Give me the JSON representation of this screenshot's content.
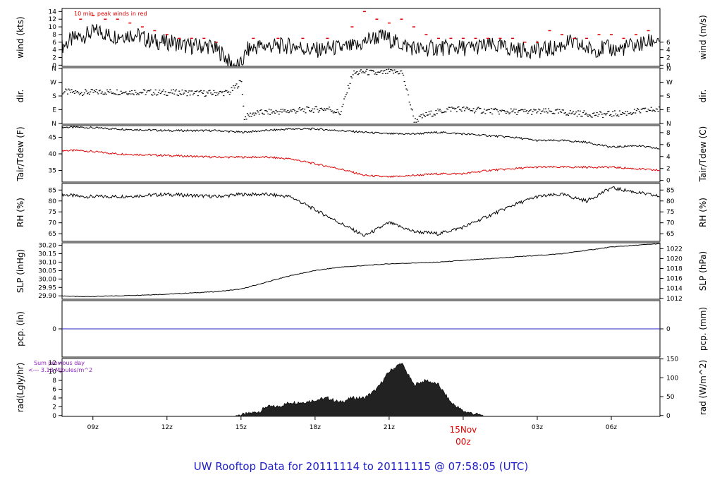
{
  "title": "UW Rooftop Data for 20111114  to  20111115 @ 07:58:05  (UTC)",
  "colors": {
    "main": "#000000",
    "peak": "#e00000",
    "dew": "#e00000",
    "precip": "#2020c8",
    "title": "#2020c8",
    "note_rad": "#9020c0"
  },
  "x_axis": {
    "range_hours": [
      7.75,
      31.97
    ],
    "ticks": [
      {
        "hour": 9,
        "label": "09z"
      },
      {
        "hour": 12,
        "label": "12z"
      },
      {
        "hour": 15,
        "label": "15z"
      },
      {
        "hour": 18,
        "label": "18z"
      },
      {
        "hour": 21,
        "label": "21z"
      },
      {
        "hour": 24,
        "label": "00z"
      },
      {
        "hour": 27,
        "label": "03z"
      },
      {
        "hour": 30,
        "label": "06z"
      }
    ],
    "day_label": {
      "hour": 24,
      "date": "15Nov",
      "time": "00z"
    }
  },
  "chart_data": [
    {
      "type": "line",
      "panel": "wind",
      "left_label": "wind (kts)",
      "right_label": "wind (m/s)",
      "left_ticks": [
        0,
        2,
        4,
        6,
        8,
        10,
        12,
        14
      ],
      "left_ticks_text": [
        "0",
        "2",
        "4",
        "6",
        "8",
        "10",
        "12",
        "14"
      ],
      "right_ticks": [
        0,
        2,
        4,
        6
      ],
      "right_ticks_text": [
        "0",
        "2",
        "4",
        "6"
      ],
      "ylim": [
        -0.3,
        14.8
      ],
      "annotation": "10 min. peak winds in red",
      "x": [
        7.75,
        8.25,
        8.75,
        9.25,
        9.75,
        10.25,
        10.75,
        11.25,
        11.75,
        12.25,
        12.75,
        13.25,
        13.75,
        14.25,
        14.5,
        14.6,
        15.0,
        15.25,
        15.75,
        16.25,
        16.75,
        17.25,
        17.75,
        18.25,
        18.75,
        19.25,
        19.75,
        20.25,
        20.75,
        21.25,
        21.75,
        22.25,
        22.75,
        23.25,
        23.75,
        24.25,
        24.75,
        25.25,
        25.75,
        26.25,
        26.75,
        27.25,
        27.75,
        28.25,
        28.75,
        29.25,
        29.75,
        30.25,
        30.75,
        31.25,
        31.75,
        31.97
      ],
      "y": [
        5,
        7,
        8,
        9,
        7.5,
        8,
        8,
        6.5,
        6,
        6,
        5,
        5,
        5,
        3,
        1,
        0,
        0,
        4,
        5,
        5,
        5,
        5,
        4,
        4,
        4.5,
        4.5,
        5,
        7,
        7.5,
        6,
        5,
        4,
        4.5,
        4.5,
        4.5,
        4.5,
        5,
        5,
        4.5,
        4,
        4,
        4,
        4.5,
        6,
        5,
        4,
        4.5,
        4,
        5,
        5.5,
        6.5,
        7
      ],
      "peak_x": [
        8.5,
        9.0,
        9.5,
        10.0,
        10.5,
        11.0,
        11.5,
        12.0,
        12.5,
        13.0,
        13.5,
        14.0,
        15.5,
        16.5,
        17.5,
        18.5,
        19.5,
        20.0,
        20.5,
        21.0,
        21.5,
        22.0,
        22.5,
        23.0,
        23.5,
        24.0,
        24.5,
        25.0,
        25.5,
        26.0,
        26.5,
        27.0,
        27.5,
        28.0,
        28.5,
        29.0,
        29.5,
        30.0,
        30.5,
        31.0,
        31.5
      ],
      "peak_y": [
        12,
        13,
        12,
        12,
        11,
        10,
        9,
        8,
        7,
        7,
        7,
        6,
        7,
        7,
        7,
        7,
        10,
        14,
        12,
        11,
        12,
        10,
        8,
        7,
        7,
        7,
        7,
        7,
        7,
        7,
        6,
        6,
        9,
        8,
        7,
        7,
        8,
        8,
        7,
        8,
        9
      ]
    },
    {
      "type": "scatter",
      "panel": "dir",
      "left_label": "dir.",
      "right_label": "dir.",
      "left_ticks": [
        0,
        90,
        180,
        270,
        360
      ],
      "left_ticks_text": [
        "N",
        "E",
        "S",
        "W",
        "N"
      ],
      "right_ticks": [
        0,
        90,
        180,
        270,
        360
      ],
      "right_ticks_text": [
        "N",
        "E",
        "S",
        "W",
        "N"
      ],
      "ylim": [
        -5,
        365
      ],
      "x": [
        7.75,
        8.5,
        9.5,
        10.5,
        11.5,
        12.5,
        13.5,
        14.5,
        15.0,
        15.1,
        15.5,
        16.5,
        17.5,
        18.5,
        19.0,
        19.5,
        20.0,
        20.5,
        21.0,
        21.5,
        22.0,
        22.5,
        23.5,
        24.5,
        25.5,
        26.5,
        27.5,
        28.5,
        29.5,
        30.5,
        31.5,
        31.97
      ],
      "y": [
        210,
        205,
        210,
        210,
        205,
        205,
        200,
        205,
        280,
        40,
        70,
        80,
        90,
        100,
        70,
        330,
        340,
        330,
        340,
        340,
        20,
        60,
        100,
        90,
        80,
        80,
        80,
        70,
        60,
        70,
        90,
        95
      ]
    },
    {
      "type": "line",
      "panel": "temp",
      "left_label": "Tair/Tdew (F)",
      "right_label": "Tair/Tdew (C)",
      "left_ticks": [
        35,
        40,
        45
      ],
      "left_ticks_text": [
        "35",
        "40",
        "45"
      ],
      "right_ticks": [
        32,
        35.6,
        39.2,
        42.8,
        46.4
      ],
      "right_ticks_text": [
        "0",
        "2",
        "4",
        "6",
        "8"
      ],
      "ylim": [
        31.5,
        48.5
      ],
      "series": [
        {
          "role": "air",
          "x": [
            7.75,
            8.5,
            10,
            12,
            14,
            15,
            16,
            17,
            18,
            19,
            20,
            21,
            22,
            23,
            24,
            25,
            26,
            27,
            28,
            29,
            30,
            31,
            31.97
          ],
          "y": [
            48,
            48,
            47.5,
            47,
            47,
            46.5,
            47,
            47.5,
            47.5,
            47,
            46.5,
            46,
            46,
            46.5,
            46,
            45.5,
            45,
            44,
            44,
            43.5,
            42,
            42.5,
            41.5
          ]
        },
        {
          "role": "dew",
          "x": [
            7.75,
            8.5,
            10,
            12,
            14,
            16,
            17,
            18,
            19,
            20,
            21,
            22,
            23,
            24,
            25,
            26,
            27,
            28,
            29,
            30,
            31,
            31.97
          ],
          "y": [
            41,
            41,
            40,
            39.5,
            39,
            39,
            38.5,
            37,
            35.5,
            33.5,
            33,
            33.5,
            34,
            34,
            35,
            35.5,
            36,
            36,
            36,
            36,
            35.5,
            35
          ]
        }
      ]
    },
    {
      "type": "line",
      "panel": "rh",
      "left_label": "RH (%)",
      "right_label": "RH (%)",
      "left_ticks": [
        65,
        70,
        75,
        80,
        85
      ],
      "left_ticks_text": [
        "65",
        "70",
        "75",
        "80",
        "85"
      ],
      "right_ticks": [
        65,
        70,
        75,
        80,
        85
      ],
      "right_ticks_text": [
        "65",
        "70",
        "75",
        "80",
        "85"
      ],
      "ylim": [
        61.5,
        88
      ],
      "x": [
        7.75,
        8.5,
        10,
        12,
        14,
        15,
        16,
        17,
        18,
        19,
        20,
        21,
        22,
        23,
        24,
        25,
        26,
        27,
        28,
        29,
        30,
        31,
        31.97
      ],
      "y": [
        83,
        82,
        82,
        83,
        82,
        83,
        83,
        82,
        76,
        70,
        64,
        70,
        66,
        65,
        68,
        73,
        78,
        82,
        83,
        80,
        86,
        84,
        82
      ]
    },
    {
      "type": "line",
      "panel": "slp",
      "left_label": "SLP (inHg)",
      "right_label": "SLP (hPa)",
      "left_ticks": [
        29.9,
        29.95,
        30.0,
        30.05,
        30.1,
        30.15,
        30.2
      ],
      "left_ticks_text": [
        "29.90",
        "29.95",
        "30.00",
        "30.05",
        "30.10",
        "30.15",
        "30.20"
      ],
      "right_ticks": [
        29.885,
        29.944,
        30.003,
        30.062,
        30.121,
        30.18
      ],
      "right_ticks_text": [
        "1012",
        "1014",
        "1016",
        "1018",
        "1020",
        "1022"
      ],
      "ylim": [
        29.88,
        30.215
      ],
      "x": [
        7.75,
        8.5,
        10,
        12,
        14,
        15,
        16,
        17,
        18,
        19,
        20,
        21,
        22,
        23,
        24,
        25,
        26,
        27,
        28,
        29,
        30,
        31,
        31.97
      ],
      "y": [
        29.9,
        29.895,
        29.9,
        29.91,
        29.925,
        29.94,
        29.98,
        30.02,
        30.05,
        30.07,
        30.08,
        30.09,
        30.095,
        30.1,
        30.11,
        30.12,
        30.13,
        30.14,
        30.15,
        30.17,
        30.19,
        30.2,
        30.21
      ]
    },
    {
      "type": "line",
      "panel": "pcp",
      "left_label": "pcp. (in)",
      "right_label": "pcp. (mm)",
      "left_ticks": [
        0
      ],
      "left_ticks_text": [
        "0"
      ],
      "right_ticks": [
        0
      ],
      "right_ticks_text": [
        "0"
      ],
      "ylim": [
        -1,
        1
      ],
      "x": [
        7.75,
        31.97
      ],
      "y": [
        0,
        0
      ]
    },
    {
      "type": "area",
      "panel": "rad",
      "left_label": "rad(Lgly/hr)",
      "right_label": "rad (W/m^2)",
      "left_ticks": [
        0,
        2,
        4,
        6,
        8,
        10,
        12
      ],
      "left_ticks_text": [
        "0",
        "2",
        "4",
        "6",
        "8",
        "10",
        "12"
      ],
      "right_ticks": [
        0,
        4.3,
        8.6,
        12.9
      ],
      "right_ticks_text": [
        "0",
        "50",
        "100",
        "150"
      ],
      "ylim": [
        -0.2,
        13
      ],
      "annotation_line1": "Sum previous day",
      "annotation_line2": "<--- 3.18 MJoules/m^2",
      "x": [
        14.8,
        15.2,
        15.8,
        16.0,
        16.5,
        17.0,
        17.5,
        18.0,
        18.5,
        19.0,
        19.5,
        20.0,
        20.5,
        21.0,
        21.5,
        22.0,
        22.5,
        23.0,
        23.5,
        24.0,
        24.5,
        24.8
      ],
      "y": [
        0,
        0.3,
        1,
        2,
        2,
        3,
        3,
        3.5,
        4,
        3,
        4,
        4,
        6,
        10,
        12,
        7,
        8,
        7,
        3,
        1,
        0.3,
        0
      ]
    }
  ]
}
